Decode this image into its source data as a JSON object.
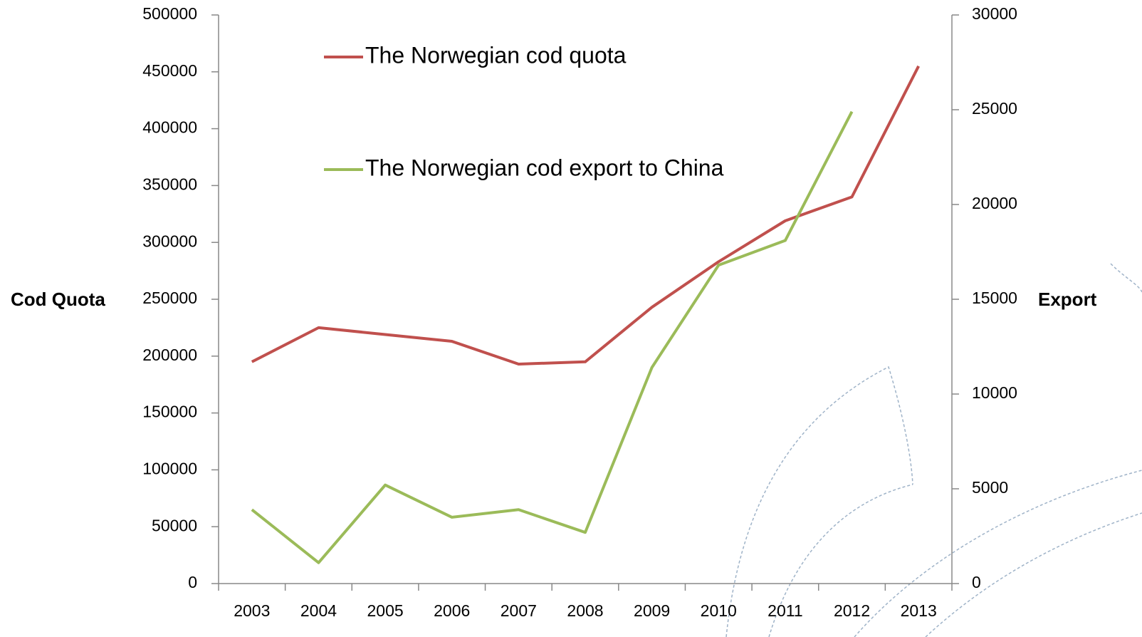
{
  "chart_data": {
    "type": "line",
    "categories": [
      "2003",
      "2004",
      "2005",
      "2006",
      "2007",
      "2008",
      "2009",
      "2010",
      "2011",
      "2012",
      "2013"
    ],
    "series": [
      {
        "name": "The Norwegian cod quota",
        "color": "#c0504d",
        "values": [
          195000,
          225000,
          219000,
          213000,
          193000,
          195000,
          243000,
          283000,
          319000,
          340000,
          455000
        ]
      },
      {
        "name": "The Norwegian cod export to China",
        "color": "#9bbb59",
        "axis": "y2",
        "values": [
          3900,
          1100,
          5200,
          3500,
          3900,
          2700,
          11400,
          16800,
          18100,
          24900,
          null
        ]
      }
    ],
    "ylabel": "Cod Quota",
    "y2label": "Export",
    "ylim": [
      0,
      500000
    ],
    "yticks": [
      0,
      50000,
      100000,
      150000,
      200000,
      250000,
      300000,
      350000,
      400000,
      450000,
      500000
    ],
    "y2lim": [
      0,
      30000
    ],
    "y2ticks": [
      0,
      5000,
      10000,
      15000,
      20000,
      25000,
      30000
    ],
    "grid": false
  }
}
